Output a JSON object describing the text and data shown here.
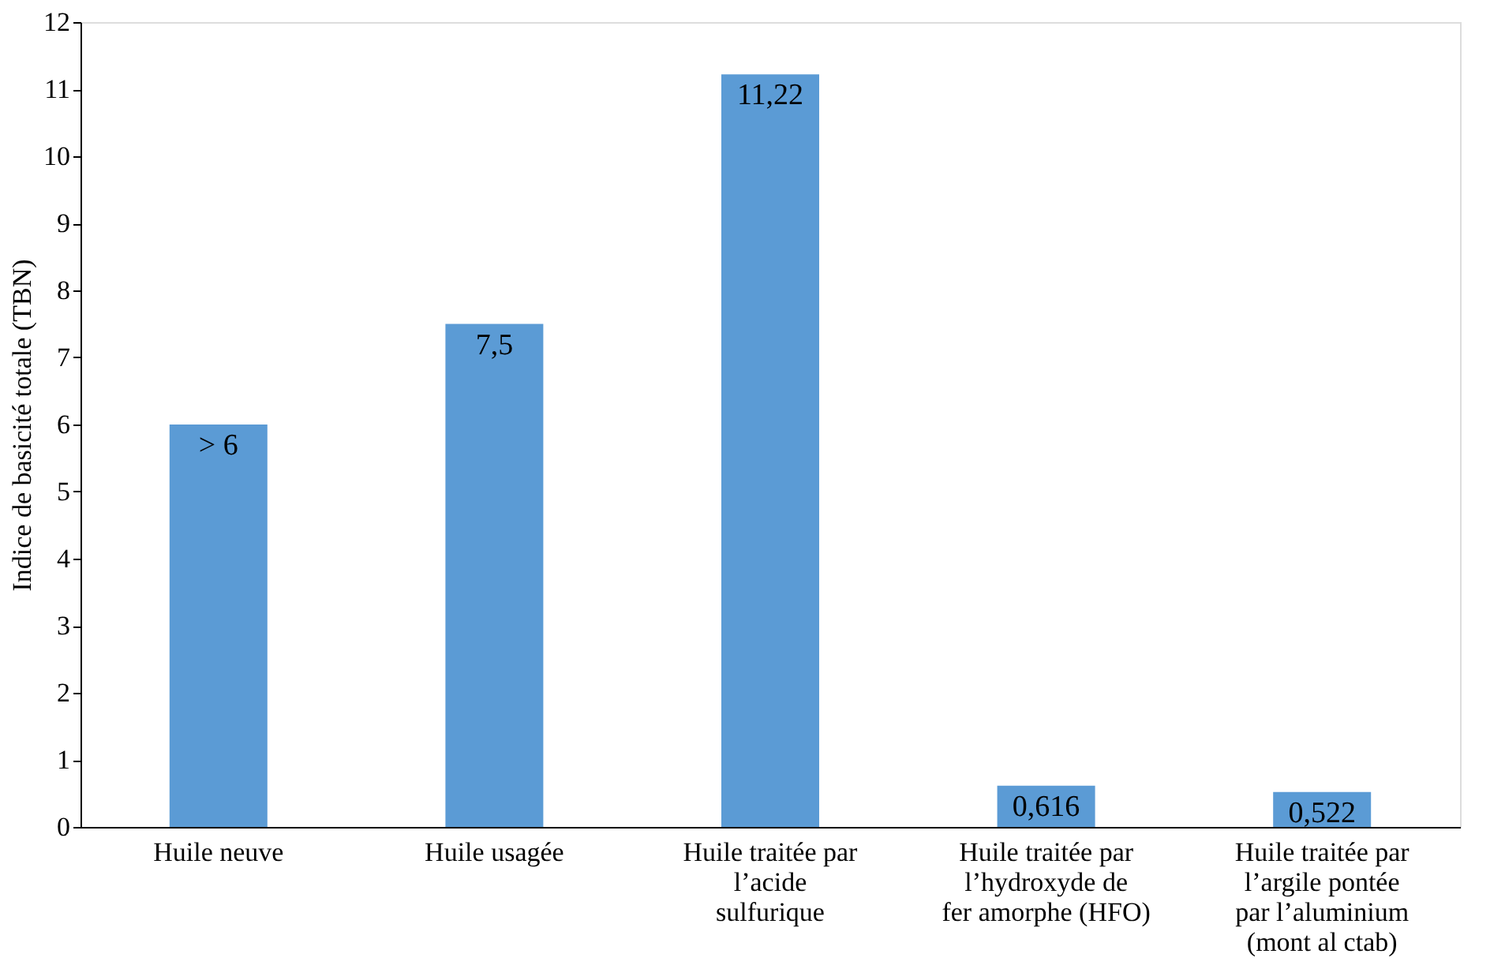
{
  "chart_data": {
    "type": "bar",
    "ylabel": "Indice de basicité totale (TBN)",
    "categories": [
      "Huile neuve",
      "Huile usagée",
      "Huile traitée par l’acide sulfurique",
      "Huile traitée par l’hydroxyde de fer amorphe (HFO)",
      "Huile traitée par l’argile pontée par l’aluminium (mont al ctab)"
    ],
    "values": [
      6,
      7.5,
      11.22,
      0.616,
      0.522
    ],
    "value_labels": [
      "> 6",
      "7,5",
      "11,22",
      "0,616",
      "0,522"
    ],
    "color": "#5b9bd5",
    "ylim": [
      0,
      12
    ],
    "yticks": [
      0,
      1,
      2,
      3,
      4,
      5,
      6,
      7,
      8,
      9,
      10,
      11,
      12
    ],
    "grid": false
  }
}
